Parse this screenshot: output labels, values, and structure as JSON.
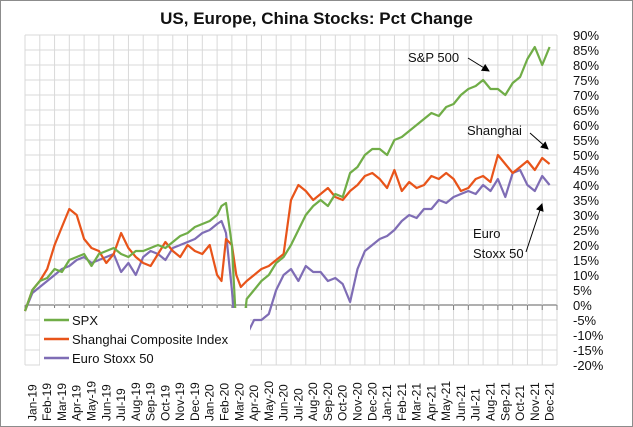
{
  "chart_data": {
    "type": "line",
    "title": "US, Europe, China Stocks: Pct Change",
    "xlabel": "",
    "ylabel": "",
    "ylim": [
      -20,
      90
    ],
    "ytick_step": 5,
    "y_tick_labels": [
      "90%",
      "85%",
      "80%",
      "75%",
      "70%",
      "65%",
      "60%",
      "55%",
      "50%",
      "45%",
      "40%",
      "35%",
      "30%",
      "25%",
      "20%",
      "15%",
      "10%",
      "5%",
      "0%",
      "-5%",
      "-10%",
      "-15%",
      "-20%"
    ],
    "y_ticks": [
      90,
      85,
      80,
      75,
      70,
      65,
      60,
      55,
      50,
      45,
      40,
      35,
      30,
      25,
      20,
      15,
      10,
      5,
      0,
      -5,
      -10,
      -15,
      -20
    ],
    "categories": [
      "Jan-19",
      "Feb-19",
      "Mar-19",
      "Apr-19",
      "May-19",
      "Jun-19",
      "Jul-19",
      "Aug-19",
      "Sep-19",
      "Oct-19",
      "Nov-19",
      "Dec-19",
      "Jan-20",
      "Feb-20",
      "Mar-20",
      "Apr-20",
      "May-20",
      "Jun-20",
      "Jul-20",
      "Aug-20",
      "Sep-20",
      "Oct-20",
      "Nov-20",
      "Dec-20",
      "Jan-21",
      "Feb-21",
      "Mar-21",
      "Apr-21",
      "May-21",
      "Jun-21",
      "Jul-21",
      "Aug-21",
      "Sep-21",
      "Oct-21",
      "Nov-21",
      "Dec-21"
    ],
    "grid": true,
    "legend_position": "bottom-left",
    "series": [
      {
        "name": "SPX",
        "color": "#70ad47",
        "x": [
          0,
          0.5,
          1,
          1.5,
          2,
          2.5,
          3,
          3.5,
          4,
          4.5,
          5,
          5.5,
          6,
          6.5,
          7,
          7.5,
          8,
          8.5,
          9,
          9.5,
          10,
          10.5,
          11,
          11.5,
          12,
          12.5,
          13,
          13.3,
          13.6,
          14,
          14.3,
          14.6,
          15,
          15.5,
          16,
          16.5,
          17,
          17.5,
          18,
          18.5,
          19,
          19.5,
          20,
          20.5,
          21,
          21.5,
          22,
          22.5,
          23,
          23.5,
          24,
          24.5,
          25,
          25.5,
          26,
          26.5,
          27,
          27.5,
          28,
          28.5,
          29,
          29.5,
          30,
          30.5,
          31,
          31.5,
          32,
          32.5,
          33,
          33.5,
          34,
          34.5,
          35,
          35.5
        ],
        "values": [
          -2,
          5,
          8,
          9,
          12,
          11,
          15,
          16,
          17,
          13,
          17,
          18,
          19,
          17,
          16,
          18,
          18,
          19,
          20,
          19,
          21,
          23,
          24,
          26,
          27,
          28,
          30,
          33,
          34,
          20,
          -8,
          -15,
          2,
          5,
          8,
          10,
          14,
          16,
          20,
          25,
          30,
          33,
          35,
          33,
          37,
          36,
          44,
          46,
          50,
          52,
          52,
          50,
          55,
          56,
          58,
          60,
          62,
          64,
          63,
          66,
          67,
          70,
          72,
          73,
          75,
          72,
          72,
          70,
          74,
          76,
          82,
          86,
          80,
          86
        ]
      },
      {
        "name": "Shanghai Composite Index",
        "color": "#e8541a",
        "x": [
          0,
          0.5,
          1,
          1.5,
          2,
          2.5,
          3,
          3.5,
          4,
          4.5,
          5,
          5.5,
          6,
          6.5,
          7,
          7.5,
          8,
          8.5,
          9,
          9.5,
          10,
          10.5,
          11,
          11.5,
          12,
          12.5,
          13,
          13.3,
          13.6,
          14,
          14.3,
          14.6,
          15,
          15.5,
          16,
          16.5,
          17,
          17.5,
          18,
          18.5,
          19,
          19.5,
          20,
          20.5,
          21,
          21.5,
          22,
          22.5,
          23,
          23.5,
          24,
          24.5,
          25,
          25.5,
          26,
          26.5,
          27,
          27.5,
          28,
          28.5,
          29,
          29.5,
          30,
          30.5,
          31,
          31.5,
          32,
          32.5,
          33,
          33.5,
          34,
          34.5,
          35,
          35.5
        ],
        "values": [
          -2,
          5,
          8,
          12,
          20,
          26,
          32,
          30,
          22,
          19,
          18,
          14,
          17,
          24,
          19,
          16,
          14,
          13,
          17,
          21,
          18,
          16,
          20,
          18,
          17,
          20,
          10,
          8,
          22,
          20,
          10,
          6,
          8,
          10,
          12,
          13,
          15,
          17,
          35,
          40,
          38,
          35,
          37,
          39,
          36,
          35,
          38,
          40,
          43,
          44,
          42,
          39,
          45,
          38,
          41,
          39,
          40,
          43,
          42,
          44,
          42,
          38,
          39,
          42,
          43,
          41,
          50,
          47,
          44,
          46,
          48,
          45,
          49,
          47
        ]
      },
      {
        "name": "Euro Stoxx 50",
        "color": "#7f6db5",
        "x": [
          0,
          0.5,
          1,
          1.5,
          2,
          2.5,
          3,
          3.5,
          4,
          4.5,
          5,
          5.5,
          6,
          6.5,
          7,
          7.5,
          8,
          8.5,
          9,
          9.5,
          10,
          10.5,
          11,
          11.5,
          12,
          12.5,
          13,
          13.3,
          13.6,
          14,
          14.3,
          14.6,
          15,
          15.5,
          16,
          16.5,
          17,
          17.5,
          18,
          18.5,
          19,
          19.5,
          20,
          20.5,
          21,
          21.5,
          22,
          22.5,
          23,
          23.5,
          24,
          24.5,
          25,
          25.5,
          26,
          26.5,
          27,
          27.5,
          28,
          28.5,
          29,
          29.5,
          30,
          30.5,
          31,
          31.5,
          32,
          32.5,
          33,
          33.5,
          34,
          34.5,
          35,
          35.5
        ],
        "values": [
          -2,
          4,
          6,
          8,
          10,
          12,
          13,
          15,
          16,
          14,
          15,
          16,
          17,
          11,
          14,
          10,
          16,
          18,
          17,
          15,
          19,
          20,
          21,
          22,
          24,
          25,
          27,
          28,
          24,
          5,
          -12,
          -18,
          -10,
          -5,
          -5,
          -3,
          5,
          10,
          12,
          8,
          13,
          11,
          11,
          8,
          9,
          7,
          1,
          12,
          18,
          20,
          22,
          23,
          25,
          28,
          30,
          29,
          32,
          32,
          35,
          34,
          36,
          37,
          38,
          37,
          40,
          38,
          42,
          36,
          44,
          45,
          40,
          38,
          43,
          40
        ]
      }
    ],
    "annotations": [
      {
        "text": "S&P 500",
        "series": "SPX"
      },
      {
        "text": "Shanghai",
        "series": "Shanghai Composite Index"
      },
      {
        "text": "Euro",
        "series": "Euro Stoxx 50"
      },
      {
        "text": "Stoxx 50",
        "series": "Euro Stoxx 50"
      }
    ]
  }
}
